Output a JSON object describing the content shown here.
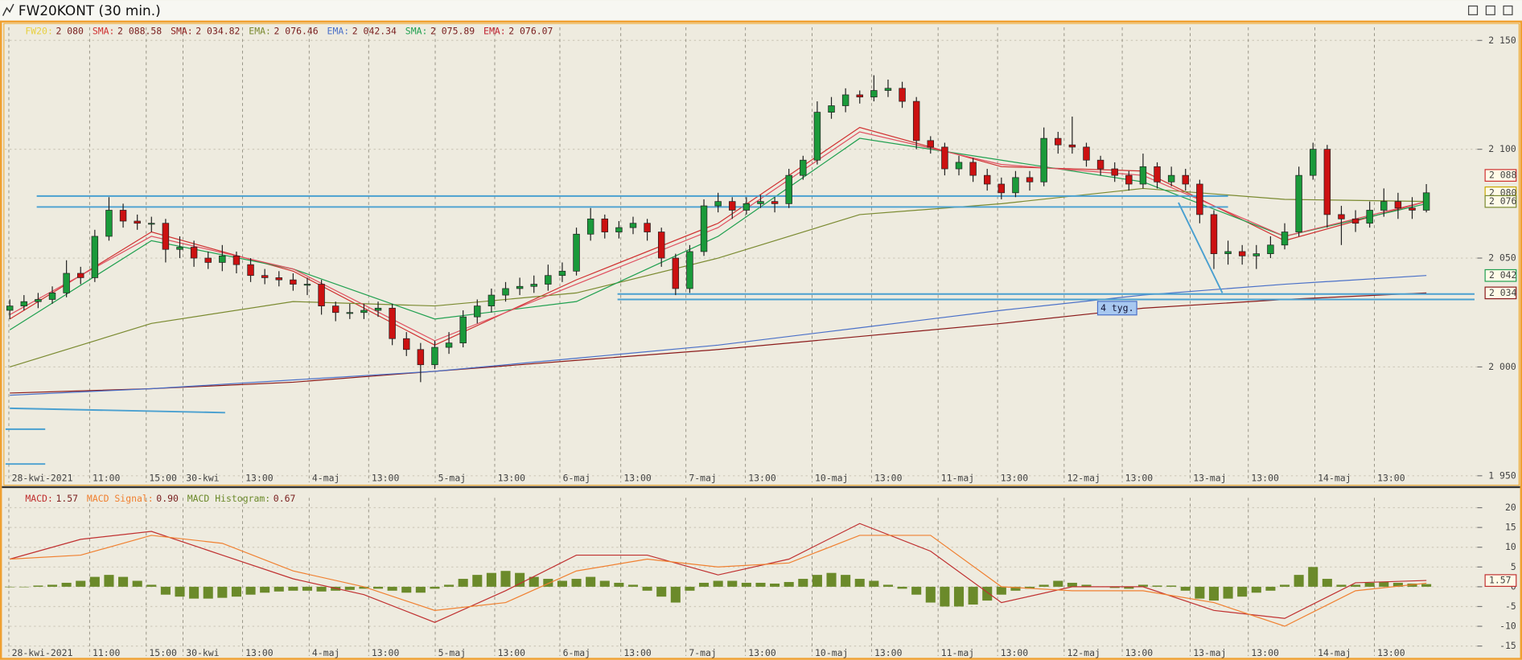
{
  "window": {
    "title": "FW20KONT (30 min.)"
  },
  "chart_data": [
    {
      "type": "candlestick",
      "xlim": [
        -0.35,
        103.6
      ],
      "ylim": [
        1947,
        2156
      ],
      "xticks": [
        {
          "value": 0,
          "label": "28-kwi-2021"
        },
        {
          "value": 5.7,
          "label": "11:00"
        },
        {
          "value": 9.7,
          "label": "15:00"
        },
        {
          "value": 12.3,
          "label": "30-kwi"
        },
        {
          "value": 16.5,
          "label": "13:00"
        },
        {
          "value": 21.2,
          "label": "4-maj"
        },
        {
          "value": 25.4,
          "label": "13:00"
        },
        {
          "value": 30.1,
          "label": "5-maj"
        },
        {
          "value": 34.3,
          "label": "13:00"
        },
        {
          "value": 38.9,
          "label": "6-maj"
        },
        {
          "value": 43.2,
          "label": "13:00"
        },
        {
          "value": 47.8,
          "label": "7-maj"
        },
        {
          "value": 52.0,
          "label": "13:00"
        },
        {
          "value": 56.7,
          "label": "10-maj"
        },
        {
          "value": 60.9,
          "label": "13:00"
        },
        {
          "value": 65.6,
          "label": "11-maj"
        },
        {
          "value": 69.8,
          "label": "13:00"
        },
        {
          "value": 74.5,
          "label": "12-maj"
        },
        {
          "value": 78.6,
          "label": "13:00"
        },
        {
          "value": 83.4,
          "label": "13-maj"
        },
        {
          "value": 87.5,
          "label": "13:00"
        },
        {
          "value": 92.2,
          "label": "14-maj"
        },
        {
          "value": 96.4,
          "label": "13:00"
        }
      ],
      "yticks": [
        {
          "value": 1950,
          "label": "1 950"
        },
        {
          "value": 2000,
          "label": "2 000"
        },
        {
          "value": 2050,
          "label": "2 050"
        },
        {
          "value": 2100,
          "label": "2 100"
        },
        {
          "value": 2150,
          "label": "2 150"
        }
      ],
      "grid": true,
      "legend": [
        {
          "name": "FW20:",
          "label": "2 080",
          "color": "#e8d040"
        },
        {
          "name": "SMA:",
          "label": "2 088.58",
          "color": "#d03030"
        },
        {
          "name": "SMA:",
          "label": "2 034.82",
          "color": "#8b1a1a"
        },
        {
          "name": "EMA:",
          "label": "2 076.46",
          "color": "#7a8a30"
        },
        {
          "name": "EMA:",
          "label": "2 042.34",
          "color": "#4a70c8"
        },
        {
          "name": "SMA:",
          "label": "2 075.89",
          "color": "#20a050"
        },
        {
          "name": "EMA:",
          "label": "2 076.07",
          "color": "#c02030"
        }
      ],
      "ohlc": [
        [
          2026,
          2031,
          2022,
          2028
        ],
        [
          2028,
          2033,
          2026,
          2030
        ],
        [
          2030,
          2034,
          2027,
          2031
        ],
        [
          2031,
          2037,
          2029,
          2034
        ],
        [
          2034,
          2049,
          2032,
          2043
        ],
        [
          2043,
          2046,
          2038,
          2041
        ],
        [
          2041,
          2063,
          2039,
          2060
        ],
        [
          2060,
          2078,
          2058,
          2072
        ],
        [
          2072,
          2075,
          2064,
          2067
        ],
        [
          2067,
          2070,
          2063,
          2066
        ],
        [
          2066,
          2069,
          2062,
          2066
        ],
        [
          2066,
          2068,
          2048,
          2054
        ],
        [
          2054,
          2060,
          2050,
          2055
        ],
        [
          2055,
          2058,
          2046,
          2050
        ],
        [
          2050,
          2053,
          2045,
          2048
        ],
        [
          2048,
          2056,
          2044,
          2051
        ],
        [
          2051,
          2053,
          2043,
          2047
        ],
        [
          2047,
          2050,
          2039,
          2042
        ],
        [
          2042,
          2045,
          2038,
          2041
        ],
        [
          2041,
          2044,
          2037,
          2040
        ],
        [
          2040,
          2043,
          2035,
          2038
        ],
        [
          2038,
          2041,
          2033,
          2038
        ],
        [
          2038,
          2040,
          2024,
          2028
        ],
        [
          2028,
          2030,
          2021,
          2025
        ],
        [
          2025,
          2029,
          2022,
          2025
        ],
        [
          2025,
          2029,
          2022,
          2026
        ],
        [
          2026,
          2030,
          2023,
          2027
        ],
        [
          2027,
          2029,
          2010,
          2013
        ],
        [
          2013,
          2016,
          2005,
          2008
        ],
        [
          2008,
          2011,
          1993,
          2001
        ],
        [
          2001,
          2012,
          1999,
          2009
        ],
        [
          2009,
          2016,
          2006,
          2011
        ],
        [
          2011,
          2026,
          2009,
          2023
        ],
        [
          2023,
          2031,
          2020,
          2028
        ],
        [
          2028,
          2036,
          2025,
          2033
        ],
        [
          2033,
          2039,
          2030,
          2036
        ],
        [
          2036,
          2041,
          2033,
          2037
        ],
        [
          2037,
          2042,
          2034,
          2038
        ],
        [
          2038,
          2047,
          2035,
          2042
        ],
        [
          2042,
          2048,
          2039,
          2044
        ],
        [
          2044,
          2064,
          2042,
          2061
        ],
        [
          2061,
          2073,
          2058,
          2068
        ],
        [
          2068,
          2070,
          2059,
          2062
        ],
        [
          2062,
          2067,
          2059,
          2064
        ],
        [
          2064,
          2069,
          2061,
          2066
        ],
        [
          2066,
          2068,
          2058,
          2062
        ],
        [
          2062,
          2064,
          2046,
          2050
        ],
        [
          2050,
          2052,
          2033,
          2036
        ],
        [
          2036,
          2056,
          2034,
          2053
        ],
        [
          2053,
          2077,
          2051,
          2074
        ],
        [
          2074,
          2080,
          2071,
          2076
        ],
        [
          2076,
          2078,
          2068,
          2072
        ],
        [
          2072,
          2078,
          2070,
          2075
        ],
        [
          2075,
          2079,
          2073,
          2076
        ],
        [
          2076,
          2078,
          2071,
          2075
        ],
        [
          2075,
          2091,
          2073,
          2088
        ],
        [
          2088,
          2097,
          2086,
          2095
        ],
        [
          2095,
          2122,
          2093,
          2117
        ],
        [
          2117,
          2124,
          2114,
          2120
        ],
        [
          2120,
          2128,
          2117,
          2125
        ],
        [
          2125,
          2127,
          2121,
          2124
        ],
        [
          2124,
          2134,
          2122,
          2127
        ],
        [
          2127,
          2132,
          2124,
          2128
        ],
        [
          2128,
          2131,
          2119,
          2122
        ],
        [
          2122,
          2124,
          2100,
          2104
        ],
        [
          2104,
          2106,
          2098,
          2101
        ],
        [
          2101,
          2103,
          2088,
          2091
        ],
        [
          2091,
          2097,
          2088,
          2094
        ],
        [
          2094,
          2096,
          2085,
          2088
        ],
        [
          2088,
          2091,
          2081,
          2084
        ],
        [
          2084,
          2087,
          2077,
          2080
        ],
        [
          2080,
          2090,
          2078,
          2087
        ],
        [
          2087,
          2090,
          2081,
          2085
        ],
        [
          2085,
          2110,
          2083,
          2105
        ],
        [
          2105,
          2108,
          2098,
          2102
        ],
        [
          2102,
          2115,
          2098,
          2101
        ],
        [
          2101,
          2103,
          2092,
          2095
        ],
        [
          2095,
          2097,
          2088,
          2091
        ],
        [
          2091,
          2094,
          2085,
          2088
        ],
        [
          2088,
          2090,
          2081,
          2084
        ],
        [
          2084,
          2098,
          2082,
          2092
        ],
        [
          2092,
          2094,
          2082,
          2085
        ],
        [
          2085,
          2092,
          2083,
          2088
        ],
        [
          2088,
          2091,
          2081,
          2084
        ],
        [
          2084,
          2086,
          2066,
          2070
        ],
        [
          2070,
          2072,
          2045,
          2052
        ],
        [
          2052,
          2058,
          2047,
          2053
        ],
        [
          2053,
          2056,
          2047,
          2051
        ],
        [
          2051,
          2056,
          2045,
          2052
        ],
        [
          2052,
          2060,
          2050,
          2056
        ],
        [
          2056,
          2066,
          2054,
          2062
        ],
        [
          2062,
          2092,
          2060,
          2088
        ],
        [
          2088,
          2103,
          2086,
          2100
        ],
        [
          2100,
          2102,
          2064,
          2070
        ],
        [
          2070,
          2074,
          2056,
          2068
        ],
        [
          2068,
          2072,
          2062,
          2066
        ],
        [
          2066,
          2076,
          2064,
          2072
        ],
        [
          2072,
          2082,
          2069,
          2076
        ],
        [
          2076,
          2080,
          2068,
          2073
        ],
        [
          2073,
          2078,
          2068,
          2072
        ],
        [
          2072,
          2084,
          2071,
          2080
        ]
      ],
      "up_color": "#1a9a3a",
      "down_color": "#cc1111",
      "ma_x": [
        0,
        10,
        20,
        30,
        40,
        50,
        60,
        70,
        80,
        90,
        100
      ],
      "series": [
        {
          "name": "SMA",
          "color": "#d03030",
          "values": [
            2022,
            2062,
            2044,
            2010,
            2040,
            2066,
            2110,
            2092,
            2090,
            2058,
            2076
          ]
        },
        {
          "name": "SMA",
          "color": "#8b1a1a",
          "values": [
            1988,
            1990,
            1993,
            1998,
            2003,
            2008,
            2014,
            2020,
            2027,
            2031,
            2034
          ]
        },
        {
          "name": "EMA",
          "color": "#7a8a30",
          "values": [
            2000,
            2020,
            2030,
            2028,
            2034,
            2050,
            2070,
            2075,
            2082,
            2077,
            2076
          ]
        },
        {
          "name": "EMA",
          "color": "#4a70c8",
          "values": [
            1987,
            1990,
            1994,
            1998,
            2004,
            2010,
            2018,
            2026,
            2033,
            2038,
            2042
          ]
        },
        {
          "name": "SMA",
          "color": "#20a050",
          "values": [
            2017,
            2058,
            2045,
            2022,
            2030,
            2060,
            2105,
            2095,
            2085,
            2060,
            2075
          ]
        },
        {
          "name": "EMA",
          "color": "#e05060",
          "values": [
            2024,
            2060,
            2045,
            2012,
            2038,
            2064,
            2108,
            2093,
            2088,
            2060,
            2076
          ]
        }
      ],
      "drawings": [
        {
          "x": [
            1.9,
            86
          ],
          "y": [
            2078.5,
            2078.5
          ]
        },
        {
          "x": [
            1.9,
            86
          ],
          "y": [
            2073.5,
            2073.5
          ]
        },
        {
          "x": [
            42.9,
            103.4
          ],
          "y": [
            2033.5,
            2033.5
          ]
        },
        {
          "x": [
            42.9,
            103.4
          ],
          "y": [
            2031,
            2031
          ]
        },
        {
          "x": [
            82.5,
            85.6
          ],
          "y": [
            2075.5,
            2034
          ]
        },
        {
          "x": [
            0,
            15.2
          ],
          "y": [
            1981,
            1979
          ]
        },
        {
          "x": [
            -0.3,
            2.5
          ],
          "y": [
            1971.4,
            1971.4
          ]
        },
        {
          "x": [
            -0.3,
            2.5
          ],
          "y": [
            1955.4,
            1955.4
          ]
        }
      ],
      "drawing_color": "#4aa0d0",
      "annotations": [
        {
          "text": "4 tyg.",
          "x": 77,
          "y": 2027
        }
      ],
      "price_tags": [
        {
          "value": 2088,
          "label": "2 088",
          "color": "#d03030"
        },
        {
          "value": 2080,
          "label": "2 080",
          "color": "#c8a800"
        },
        {
          "value": 2076,
          "label": "2 076",
          "color": "#7a8a30"
        },
        {
          "value": 2042,
          "label": "2 042",
          "color": "#20a050"
        },
        {
          "value": 2034,
          "label": "2 034",
          "color": "#8b1a1a"
        }
      ]
    },
    {
      "type": "macd",
      "xlim": [
        -0.35,
        103.6
      ],
      "ylim": [
        -17.5,
        22.5
      ],
      "yticks": [
        -15,
        -10,
        -5,
        0,
        5,
        10,
        15,
        20
      ],
      "grid": true,
      "legend": [
        {
          "name": "MACD:",
          "label": "1.57",
          "color": "#c03030"
        },
        {
          "name": "MACD Signal:",
          "label": "0.90",
          "color": "#f08030"
        },
        {
          "name": "MACD Histogram:",
          "label": "0.67",
          "color": "#6b8a2a"
        }
      ],
      "histogram": {
        "color": "#6b8a2a",
        "values": [
          0,
          0,
          0.3,
          0.5,
          1,
          1.5,
          2.5,
          3,
          2.5,
          1.5,
          0.5,
          -2,
          -2.5,
          -3,
          -3,
          -2.8,
          -2.5,
          -2,
          -1.5,
          -1.2,
          -1,
          -1,
          -1.2,
          -1,
          -0.8,
          -0.5,
          -0.5,
          -1,
          -1.5,
          -1.5,
          -0.5,
          0.5,
          2,
          3,
          3.5,
          4,
          3.5,
          2.5,
          2,
          1.5,
          2,
          2.5,
          1.5,
          1,
          0.5,
          -1,
          -2.5,
          -4,
          -1,
          1,
          1.5,
          1.5,
          1,
          1,
          0.8,
          1.2,
          2,
          3,
          3.5,
          3,
          2,
          1.5,
          0.5,
          -0.5,
          -2,
          -4,
          -5,
          -5,
          -4.5,
          -3.5,
          -2,
          -1,
          -0.5,
          0.5,
          1.5,
          1,
          0.5,
          0,
          -0.3,
          -0.5,
          0.5,
          0.3,
          0.3,
          -1,
          -3,
          -3.5,
          -3,
          -2.5,
          -1.5,
          -1,
          0.5,
          3,
          5,
          2,
          0.5,
          0.5,
          1,
          1.2,
          1,
          0.8,
          0.67
        ]
      },
      "line_x": [
        0,
        5,
        10,
        15,
        20,
        25,
        30,
        35,
        40,
        45,
        50,
        55,
        60,
        65,
        70,
        75,
        80,
        85,
        90,
        95,
        100
      ],
      "series": [
        {
          "name": "MACD",
          "color": "#c03030",
          "values": [
            7,
            12,
            14,
            8,
            2,
            -2,
            -9,
            -1,
            8,
            8,
            3,
            7,
            16,
            9,
            -4,
            0,
            0,
            -6,
            -8,
            1,
            1.6
          ]
        },
        {
          "name": "MACD Signal",
          "color": "#f08030",
          "values": [
            7,
            8,
            13,
            11,
            4,
            0,
            -6,
            -4,
            4,
            7,
            5,
            6,
            13,
            13,
            0,
            -1,
            -1,
            -4,
            -10,
            -1,
            0.9
          ]
        }
      ],
      "price_tags": [
        {
          "value": 1.57,
          "label": "1.57",
          "color": "#c03030"
        }
      ]
    }
  ]
}
